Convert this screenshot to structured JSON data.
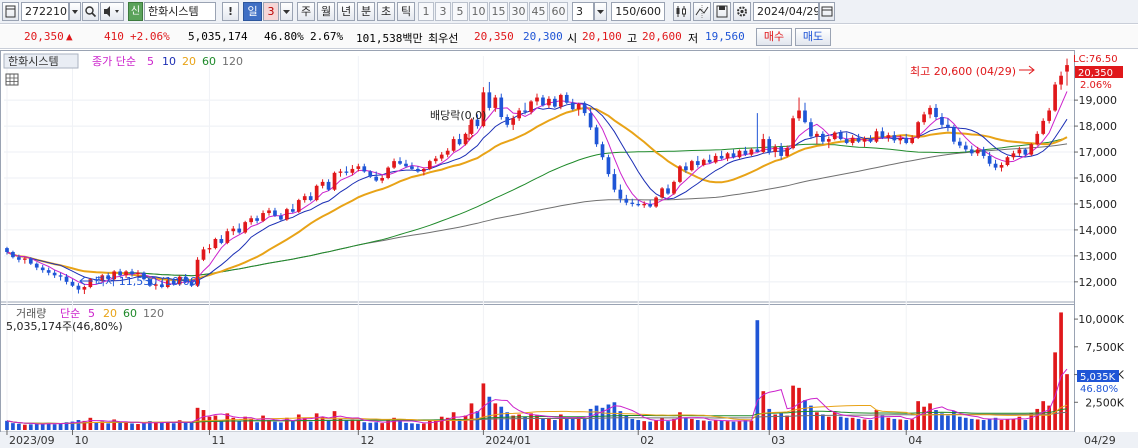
{
  "toolbar": {
    "code": "272210",
    "stock_name": "한화시스템",
    "credit_badge": "신",
    "warn": "!",
    "period_days": "일",
    "period_days_n": "3",
    "period_week": "주",
    "period_month": "월",
    "period_year": "년",
    "period_minute": "분",
    "period_second": "초",
    "period_tick": "틱",
    "intervals": [
      "1",
      "3",
      "5",
      "10",
      "15",
      "30",
      "45",
      "60"
    ],
    "interval_value": "3",
    "count": "150/600",
    "date": "2024/04/29"
  },
  "quote": {
    "price": "20,350",
    "change_arrow": "▲",
    "change": "410",
    "change_pct": "+2.06%",
    "volume": "5,035,174",
    "volume_ratio": "46.80%",
    "turnover": "2.67%",
    "amount": "101,538백만",
    "priority_label": "최우선",
    "ask": "20,350",
    "bid": "20,300",
    "open_label": "시",
    "open": "20,100",
    "high_label": "고",
    "high": "20,600",
    "low_label": "저",
    "low": "19,560",
    "buy_btn": "매수",
    "sell_btn": "매도"
  },
  "price_panel": {
    "legend_name": "한화시스템",
    "legend_type": "종가 단순",
    "legend_periods": [
      "5",
      "10",
      "20",
      "60",
      "120"
    ],
    "top_right_label": "LC:76.50",
    "last_price_tag": "20,350",
    "pct_tag": "2.06%",
    "high_annotation": "최고 20,600 (04/29)",
    "low_annotation": "최저 11,530 (10/06)",
    "dividend_annotation": "배당락(0,0)"
  },
  "volume_panel": {
    "legend_name": "거래량",
    "legend_type": "단순",
    "legend_periods": [
      "5",
      "20",
      "60",
      "120"
    ],
    "info": "5,035,174주(46,80%)",
    "last_tag": "5,035K",
    "pct_tag": "46.80%"
  },
  "colors": {
    "up": "#e0181b",
    "down": "#1f55d6",
    "ma5": "#cc22cc",
    "ma10": "#1c2fb5",
    "ma20": "#e8a317",
    "ma60": "#1f8a2a",
    "ma120": "#707070"
  },
  "chart_data": {
    "type": "candlestick",
    "y_ticks": [
      12000,
      13000,
      14000,
      15000,
      16000,
      17000,
      18000,
      19000
    ],
    "y_range": [
      11300,
      20700
    ],
    "volume_ticks": [
      2500000,
      5000000,
      7500000,
      10000000
    ],
    "volume_tick_labels": [
      "2,500K",
      "5,000K",
      "7,500K",
      "10,000K"
    ],
    "volume_range": [
      0,
      11000000
    ],
    "x_labels": [
      {
        "label": "2023/09",
        "index": 0
      },
      {
        "label": "10",
        "index": 11
      },
      {
        "label": "11",
        "index": 34
      },
      {
        "label": "12",
        "index": 59
      },
      {
        "label": "2024/01",
        "index": 80
      },
      {
        "label": "02",
        "index": 106
      },
      {
        "label": "03",
        "index": 128
      },
      {
        "label": "04",
        "index": 151
      },
      {
        "label": "04/29",
        "index": 180
      }
    ],
    "candles": [
      [
        13300,
        13350,
        13050,
        13150,
        830000
      ],
      [
        13150,
        13200,
        12900,
        12950,
        620000
      ],
      [
        12950,
        13050,
        12750,
        12850,
        560000
      ],
      [
        12850,
        12950,
        12700,
        12900,
        480000
      ],
      [
        12900,
        12950,
        12650,
        12700,
        510000
      ],
      [
        12700,
        12750,
        12450,
        12550,
        600000
      ],
      [
        12550,
        12650,
        12350,
        12450,
        570000
      ],
      [
        12450,
        12550,
        12250,
        12350,
        640000
      ],
      [
        12350,
        12450,
        12150,
        12250,
        520000
      ],
      [
        12250,
        12350,
        12050,
        12200,
        560000
      ],
      [
        12200,
        12300,
        11900,
        12000,
        700000
      ],
      [
        12000,
        12100,
        11800,
        11850,
        760000
      ],
      [
        11850,
        11950,
        11550,
        11700,
        900000
      ],
      [
        11700,
        11850,
        11530,
        11800,
        820000
      ],
      [
        11800,
        12150,
        11750,
        12100,
        1100000
      ],
      [
        12100,
        12200,
        11950,
        12050,
        650000
      ],
      [
        12050,
        12300,
        12000,
        12250,
        780000
      ],
      [
        12250,
        12350,
        12050,
        12100,
        600000
      ],
      [
        12100,
        12450,
        12050,
        12400,
        950000
      ],
      [
        12400,
        12500,
        12200,
        12250,
        700000
      ],
      [
        12250,
        12450,
        12150,
        12400,
        680000
      ],
      [
        12400,
        12500,
        12200,
        12300,
        590000
      ],
      [
        12300,
        12450,
        12200,
        12350,
        540000
      ],
      [
        12350,
        12400,
        12050,
        12100,
        620000
      ],
      [
        12100,
        12200,
        11800,
        11850,
        800000
      ],
      [
        11850,
        12000,
        11700,
        11900,
        720000
      ],
      [
        11900,
        12050,
        11750,
        11800,
        650000
      ],
      [
        11800,
        12100,
        11750,
        12050,
        700000
      ],
      [
        12050,
        12100,
        11850,
        11900,
        610000
      ],
      [
        11900,
        12250,
        11850,
        12200,
        880000
      ],
      [
        12200,
        12300,
        11950,
        12000,
        640000
      ],
      [
        12000,
        12150,
        11800,
        11850,
        700000
      ],
      [
        11850,
        12950,
        11800,
        12850,
        2000000
      ],
      [
        12850,
        13350,
        12800,
        13250,
        1800000
      ],
      [
        13250,
        13450,
        13100,
        13300,
        1200000
      ],
      [
        13300,
        13700,
        13250,
        13650,
        1300000
      ],
      [
        13650,
        13800,
        13450,
        13500,
        900000
      ],
      [
        13500,
        14050,
        13450,
        13950,
        1500000
      ],
      [
        13950,
        14150,
        13800,
        14050,
        1100000
      ],
      [
        14050,
        14250,
        13850,
        13900,
        800000
      ],
      [
        13900,
        14350,
        13850,
        14300,
        1200000
      ],
      [
        14300,
        14550,
        14200,
        14450,
        1000000
      ],
      [
        14450,
        14550,
        14250,
        14350,
        700000
      ],
      [
        14350,
        14750,
        14300,
        14650,
        1300000
      ],
      [
        14650,
        14850,
        14550,
        14750,
        900000
      ],
      [
        14750,
        14850,
        14500,
        14550,
        750000
      ],
      [
        14550,
        14650,
        14350,
        14400,
        680000
      ],
      [
        14400,
        14850,
        14350,
        14800,
        1100000
      ],
      [
        14800,
        15000,
        14650,
        14700,
        800000
      ],
      [
        14700,
        15200,
        14650,
        15150,
        1400000
      ],
      [
        15150,
        15400,
        15050,
        15300,
        1100000
      ],
      [
        15300,
        15450,
        15100,
        15150,
        750000
      ],
      [
        15150,
        15750,
        15100,
        15700,
        1500000
      ],
      [
        15700,
        15950,
        15600,
        15850,
        1200000
      ],
      [
        15850,
        15950,
        15500,
        15550,
        850000
      ],
      [
        15550,
        16250,
        15500,
        16200,
        1700000
      ],
      [
        16200,
        16350,
        16050,
        16250,
        1000000
      ],
      [
        16250,
        16450,
        16100,
        16200,
        900000
      ],
      [
        16200,
        16500,
        16100,
        16350,
        950000
      ],
      [
        16350,
        16550,
        16250,
        16450,
        900000
      ],
      [
        16450,
        16550,
        16200,
        16250,
        700000
      ],
      [
        16250,
        16300,
        16000,
        16050,
        650000
      ],
      [
        16050,
        16250,
        15850,
        15900,
        700000
      ],
      [
        15900,
        16100,
        15800,
        16000,
        620000
      ],
      [
        16000,
        16450,
        15950,
        16400,
        900000
      ],
      [
        16400,
        16750,
        16350,
        16650,
        1100000
      ],
      [
        16650,
        16800,
        16500,
        16550,
        800000
      ],
      [
        16550,
        16700,
        16400,
        16450,
        640000
      ],
      [
        16450,
        16600,
        16300,
        16350,
        600000
      ],
      [
        16350,
        16450,
        16200,
        16250,
        560000
      ],
      [
        16250,
        16400,
        16100,
        16350,
        580000
      ],
      [
        16350,
        16700,
        16300,
        16650,
        900000
      ],
      [
        16650,
        16850,
        16550,
        16750,
        950000
      ],
      [
        16750,
        17000,
        16650,
        16900,
        1200000
      ],
      [
        16900,
        17150,
        16800,
        17050,
        1100000
      ],
      [
        17050,
        17600,
        17000,
        17500,
        1600000
      ],
      [
        17500,
        17700,
        17250,
        17300,
        1000000
      ],
      [
        17300,
        17750,
        17250,
        17700,
        1300000
      ],
      [
        17700,
        18300,
        17650,
        18250,
        2400000
      ],
      [
        18250,
        18450,
        17900,
        18000,
        1700000
      ],
      [
        18000,
        19500,
        17950,
        19300,
        4200000
      ],
      [
        19300,
        19700,
        18600,
        18700,
        3000000
      ],
      [
        18700,
        19200,
        18550,
        19100,
        2400000
      ],
      [
        19100,
        19250,
        18250,
        18350,
        2100000
      ],
      [
        18350,
        18450,
        17950,
        18050,
        1600000
      ],
      [
        18050,
        18400,
        17850,
        18300,
        1300000
      ],
      [
        18300,
        18700,
        18200,
        18600,
        1400000
      ],
      [
        18600,
        18900,
        18450,
        18550,
        1200000
      ],
      [
        18550,
        19000,
        18450,
        18950,
        1500000
      ],
      [
        18950,
        19250,
        18800,
        19100,
        1300000
      ],
      [
        19100,
        19200,
        18750,
        18800,
        1000000
      ],
      [
        18800,
        19150,
        18700,
        19050,
        1100000
      ],
      [
        19050,
        19150,
        18700,
        18750,
        900000
      ],
      [
        18750,
        19250,
        18650,
        19200,
        1400000
      ],
      [
        19200,
        19300,
        18850,
        18900,
        1100000
      ],
      [
        18900,
        19050,
        18600,
        18650,
        1000000
      ],
      [
        18650,
        18900,
        18400,
        18850,
        1200000
      ],
      [
        18850,
        18950,
        18400,
        18500,
        1000000
      ],
      [
        18500,
        18700,
        17850,
        17950,
        1900000
      ],
      [
        17950,
        18050,
        17200,
        17300,
        2200000
      ],
      [
        17300,
        17400,
        16700,
        16800,
        2000000
      ],
      [
        16800,
        16900,
        16050,
        16150,
        2300000
      ],
      [
        16150,
        16350,
        15450,
        15550,
        2500000
      ],
      [
        15550,
        15750,
        15050,
        15200,
        1700000
      ],
      [
        15200,
        15350,
        14950,
        15050,
        1300000
      ],
      [
        15050,
        15200,
        14900,
        15000,
        1000000
      ],
      [
        15000,
        15150,
        14900,
        14950,
        900000
      ],
      [
        14950,
        15100,
        14850,
        15000,
        800000
      ],
      [
        15000,
        15150,
        14850,
        14900,
        750000
      ],
      [
        14900,
        15300,
        14850,
        15250,
        900000
      ],
      [
        15250,
        15650,
        15200,
        15600,
        1100000
      ],
      [
        15600,
        15750,
        15350,
        15400,
        800000
      ],
      [
        15400,
        15900,
        15350,
        15850,
        1000000
      ],
      [
        15850,
        16500,
        15800,
        16450,
        1600000
      ],
      [
        16450,
        16600,
        16200,
        16300,
        1100000
      ],
      [
        16300,
        16700,
        16250,
        16650,
        1000000
      ],
      [
        16650,
        16850,
        16400,
        16500,
        900000
      ],
      [
        16500,
        16750,
        16450,
        16700,
        850000
      ],
      [
        16700,
        16900,
        16550,
        16600,
        800000
      ],
      [
        16600,
        16950,
        16550,
        16850,
        900000
      ],
      [
        16850,
        17050,
        16700,
        16750,
        850000
      ],
      [
        16750,
        17000,
        16650,
        16950,
        800000
      ],
      [
        16950,
        17100,
        16750,
        16800,
        750000
      ],
      [
        16800,
        17100,
        16750,
        17050,
        800000
      ],
      [
        17050,
        17200,
        16850,
        16900,
        900000
      ],
      [
        16900,
        17150,
        16850,
        17100,
        850000
      ],
      [
        17100,
        18500,
        17050,
        17000,
        9900000
      ],
      [
        17000,
        17700,
        16950,
        17500,
        3500000
      ],
      [
        17500,
        17600,
        16900,
        17000,
        1900000
      ],
      [
        17000,
        17300,
        16800,
        17200,
        1400000
      ],
      [
        17200,
        17350,
        16700,
        16850,
        1500000
      ],
      [
        16850,
        17250,
        16800,
        17150,
        1300000
      ],
      [
        17150,
        18400,
        17100,
        18300,
        4000000
      ],
      [
        18300,
        19100,
        18200,
        18600,
        3800000
      ],
      [
        18600,
        18900,
        18100,
        18150,
        2700000
      ],
      [
        18150,
        18300,
        17500,
        17600,
        2200000
      ],
      [
        17600,
        17800,
        17300,
        17700,
        1600000
      ],
      [
        17700,
        17800,
        17300,
        17400,
        1400000
      ],
      [
        17400,
        17600,
        17150,
        17500,
        1200000
      ],
      [
        17500,
        17800,
        17450,
        17750,
        1600000
      ],
      [
        17750,
        17850,
        17450,
        17500,
        1200000
      ],
      [
        17500,
        17750,
        17300,
        17350,
        1100000
      ],
      [
        17350,
        17650,
        17250,
        17550,
        1100000
      ],
      [
        17550,
        17700,
        17350,
        17400,
        1000000
      ],
      [
        17400,
        17600,
        17200,
        17500,
        950000
      ],
      [
        17500,
        17650,
        17350,
        17400,
        900000
      ],
      [
        17400,
        17900,
        17350,
        17800,
        1800000
      ],
      [
        17800,
        17950,
        17500,
        17550,
        1300000
      ],
      [
        17550,
        17750,
        17400,
        17650,
        1100000
      ],
      [
        17650,
        17800,
        17350,
        17450,
        1000000
      ],
      [
        17450,
        17650,
        17300,
        17550,
        950000
      ],
      [
        17550,
        17700,
        17300,
        17350,
        900000
      ],
      [
        17350,
        17650,
        17300,
        17550,
        950000
      ],
      [
        17550,
        18200,
        17500,
        18150,
        2600000
      ],
      [
        18150,
        18550,
        18050,
        18450,
        2100000
      ],
      [
        18450,
        18800,
        18300,
        18700,
        2400000
      ],
      [
        18700,
        18850,
        18250,
        18350,
        1800000
      ],
      [
        18350,
        18500,
        17900,
        18050,
        1500000
      ],
      [
        18050,
        18300,
        17800,
        17950,
        1300000
      ],
      [
        17950,
        18050,
        17300,
        17400,
        1700000
      ],
      [
        17400,
        17550,
        17150,
        17250,
        1200000
      ],
      [
        17250,
        17400,
        17000,
        17100,
        1100000
      ],
      [
        17100,
        17250,
        16850,
        16950,
        1000000
      ],
      [
        16950,
        17200,
        16850,
        17100,
        950000
      ],
      [
        17100,
        17200,
        16750,
        16850,
        900000
      ],
      [
        16850,
        17000,
        16450,
        16550,
        1000000
      ],
      [
        16550,
        16700,
        16300,
        16400,
        1100000
      ],
      [
        16400,
        16600,
        16250,
        16500,
        900000
      ],
      [
        16500,
        16850,
        16450,
        16800,
        950000
      ],
      [
        16800,
        17050,
        16700,
        16950,
        1000000
      ],
      [
        16950,
        17200,
        16850,
        17100,
        1200000
      ],
      [
        17100,
        17150,
        16850,
        16900,
        900000
      ],
      [
        16900,
        17350,
        16850,
        17300,
        1500000
      ],
      [
        17300,
        17800,
        17250,
        17700,
        1900000
      ],
      [
        17700,
        18300,
        17650,
        18200,
        2600000
      ],
      [
        18200,
        18700,
        18100,
        18600,
        2200000
      ],
      [
        18600,
        19700,
        18550,
        19600,
        7000000
      ],
      [
        19600,
        20100,
        19400,
        19940,
        10600000
      ],
      [
        20100,
        20600,
        19560,
        20350,
        5035174
      ]
    ]
  }
}
